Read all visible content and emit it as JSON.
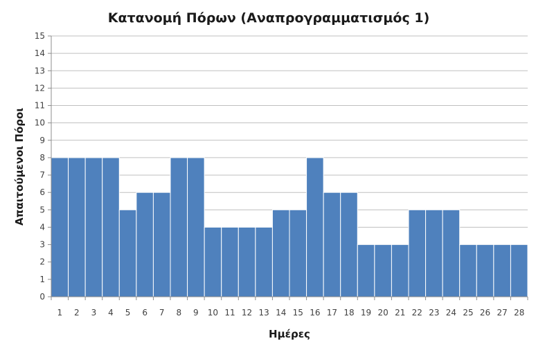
{
  "chart_data": {
    "type": "bar",
    "title": "Κατανομή Πόρων (Αναπρογραμματισμός 1)",
    "xlabel": "Ημέρες",
    "ylabel": "Απαιτούμενοι Πόροι",
    "categories": [
      "1",
      "2",
      "3",
      "4",
      "5",
      "6",
      "7",
      "8",
      "9",
      "10",
      "11",
      "12",
      "13",
      "14",
      "15",
      "16",
      "17",
      "18",
      "19",
      "20",
      "21",
      "22",
      "23",
      "24",
      "25",
      "26",
      "27",
      "28"
    ],
    "values": [
      8,
      8,
      8,
      8,
      5,
      6,
      6,
      8,
      8,
      4,
      4,
      4,
      4,
      5,
      5,
      8,
      6,
      6,
      3,
      3,
      3,
      5,
      5,
      5,
      3,
      3,
      3,
      3
    ],
    "ylim": [
      0,
      15
    ],
    "yticks": [
      "0",
      "1",
      "2",
      "3",
      "4",
      "5",
      "6",
      "7",
      "8",
      "9",
      "10",
      "11",
      "12",
      "13",
      "14",
      "15"
    ],
    "grid": true,
    "legend": "none",
    "bar_color": "#4f81bd"
  }
}
